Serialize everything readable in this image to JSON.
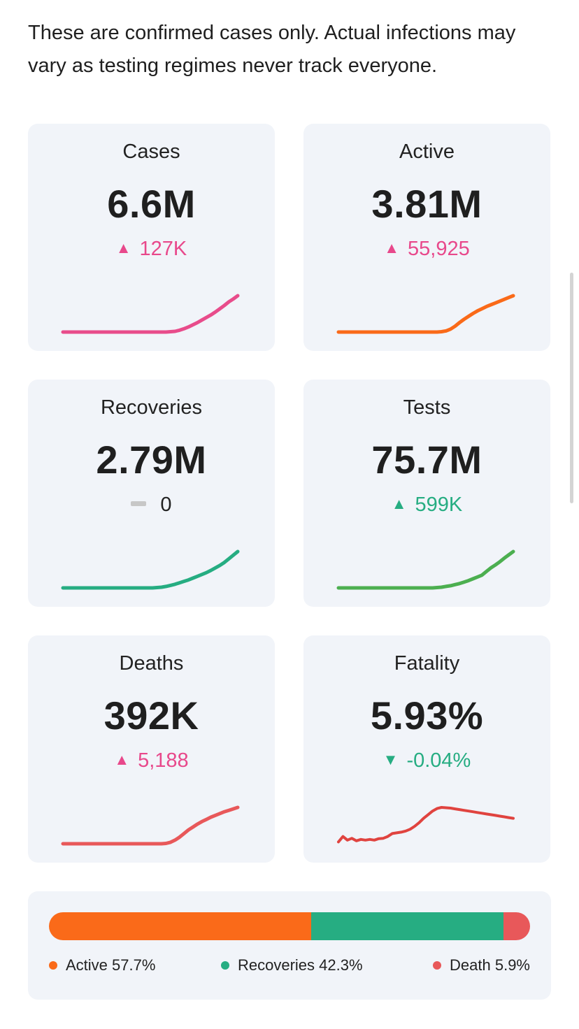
{
  "intro": "These are confirmed cases only. Actual infections may vary as testing regimes never track everyone.",
  "colors": {
    "up_bad": "#e8488b",
    "up_good": "#26ad82",
    "neutral": "#c7c7c7",
    "cases": "#e84c8b",
    "active": "#fa6a19",
    "recoveries": "#26ad82",
    "tests": "#4caf50",
    "deaths": "#e8585a",
    "fatality": "#e0433f"
  },
  "cards": [
    {
      "key": "cases",
      "label": "Cases",
      "value": "6.6M",
      "delta": "127K",
      "direction": "up",
      "tone": "bad",
      "trend": [
        0,
        0,
        0,
        0,
        0,
        0,
        0,
        0,
        0,
        0,
        0,
        0,
        0,
        0,
        0,
        0,
        0,
        0,
        0,
        0,
        0,
        0,
        0,
        0,
        0.01,
        0.02,
        0.05,
        0.09,
        0.14,
        0.2,
        0.26,
        0.33,
        0.4,
        0.47,
        0.55,
        0.64,
        0.73,
        0.83,
        0.91,
        1
      ]
    },
    {
      "key": "active",
      "label": "Active",
      "value": "3.81M",
      "delta": "55,925",
      "direction": "up",
      "tone": "bad",
      "trend": [
        0,
        0,
        0,
        0,
        0,
        0,
        0,
        0,
        0,
        0,
        0,
        0,
        0,
        0,
        0,
        0,
        0,
        0,
        0,
        0,
        0,
        0,
        0,
        0.01,
        0.03,
        0.08,
        0.16,
        0.26,
        0.35,
        0.43,
        0.51,
        0.58,
        0.64,
        0.7,
        0.75,
        0.8,
        0.85,
        0.9,
        0.95,
        1
      ]
    },
    {
      "key": "recoveries",
      "label": "Recoveries",
      "value": "2.79M",
      "delta": "0",
      "direction": "none",
      "tone": "neutral",
      "trend": [
        0,
        0,
        0,
        0,
        0,
        0,
        0,
        0,
        0,
        0,
        0,
        0,
        0,
        0,
        0,
        0,
        0,
        0,
        0,
        0,
        0,
        0.01,
        0.02,
        0.04,
        0.07,
        0.1,
        0.14,
        0.18,
        0.22,
        0.27,
        0.32,
        0.37,
        0.42,
        0.48,
        0.55,
        0.62,
        0.7,
        0.8,
        0.9,
        1
      ]
    },
    {
      "key": "tests",
      "label": "Tests",
      "value": "75.7M",
      "delta": "599K",
      "direction": "up",
      "tone": "good",
      "trend": [
        0,
        0,
        0,
        0,
        0,
        0,
        0,
        0,
        0,
        0,
        0,
        0,
        0,
        0,
        0,
        0,
        0,
        0,
        0,
        0,
        0,
        0,
        0.01,
        0.02,
        0.04,
        0.06,
        0.09,
        0.12,
        0.16,
        0.2,
        0.25,
        0.3,
        0.35,
        0.45,
        0.55,
        0.63,
        0.72,
        0.82,
        0.91,
        1
      ]
    },
    {
      "key": "deaths",
      "label": "Deaths",
      "value": "392K",
      "delta": "5,188",
      "direction": "up",
      "tone": "bad",
      "trend": [
        0,
        0,
        0,
        0,
        0,
        0,
        0,
        0,
        0,
        0,
        0,
        0,
        0,
        0,
        0,
        0,
        0,
        0,
        0,
        0,
        0,
        0,
        0,
        0.01,
        0.04,
        0.1,
        0.18,
        0.28,
        0.38,
        0.46,
        0.54,
        0.61,
        0.67,
        0.73,
        0.78,
        0.83,
        0.88,
        0.92,
        0.96,
        1
      ]
    },
    {
      "key": "fatality",
      "label": "Fatality",
      "value": "5.93%",
      "delta": "-0.04%",
      "direction": "down",
      "tone": "good",
      "trend": [
        0.05,
        0.2,
        0.1,
        0.15,
        0.08,
        0.12,
        0.1,
        0.12,
        0.1,
        0.14,
        0.15,
        0.2,
        0.28,
        0.3,
        0.32,
        0.35,
        0.4,
        0.48,
        0.58,
        0.7,
        0.8,
        0.9,
        0.97,
        1,
        0.99,
        0.98,
        0.96,
        0.94,
        0.92,
        0.9,
        0.88,
        0.86,
        0.84,
        0.82,
        0.8,
        0.78,
        0.76,
        0.74,
        0.72,
        0.7
      ]
    }
  ],
  "summary": {
    "segments": [
      {
        "name": "Active",
        "percent": 57.7,
        "color": "#fa6a19"
      },
      {
        "name": "Recoveries",
        "percent": 42.3,
        "color": "#26ad82"
      },
      {
        "name": "Death",
        "percent": 5.9,
        "color": "#e8585a"
      }
    ],
    "legend": [
      {
        "text": "Active 57.7%",
        "color": "#fa6a19"
      },
      {
        "text": "Recoveries 42.3%",
        "color": "#26ad82"
      },
      {
        "text": "Death 5.9%",
        "color": "#e8585a"
      }
    ]
  }
}
